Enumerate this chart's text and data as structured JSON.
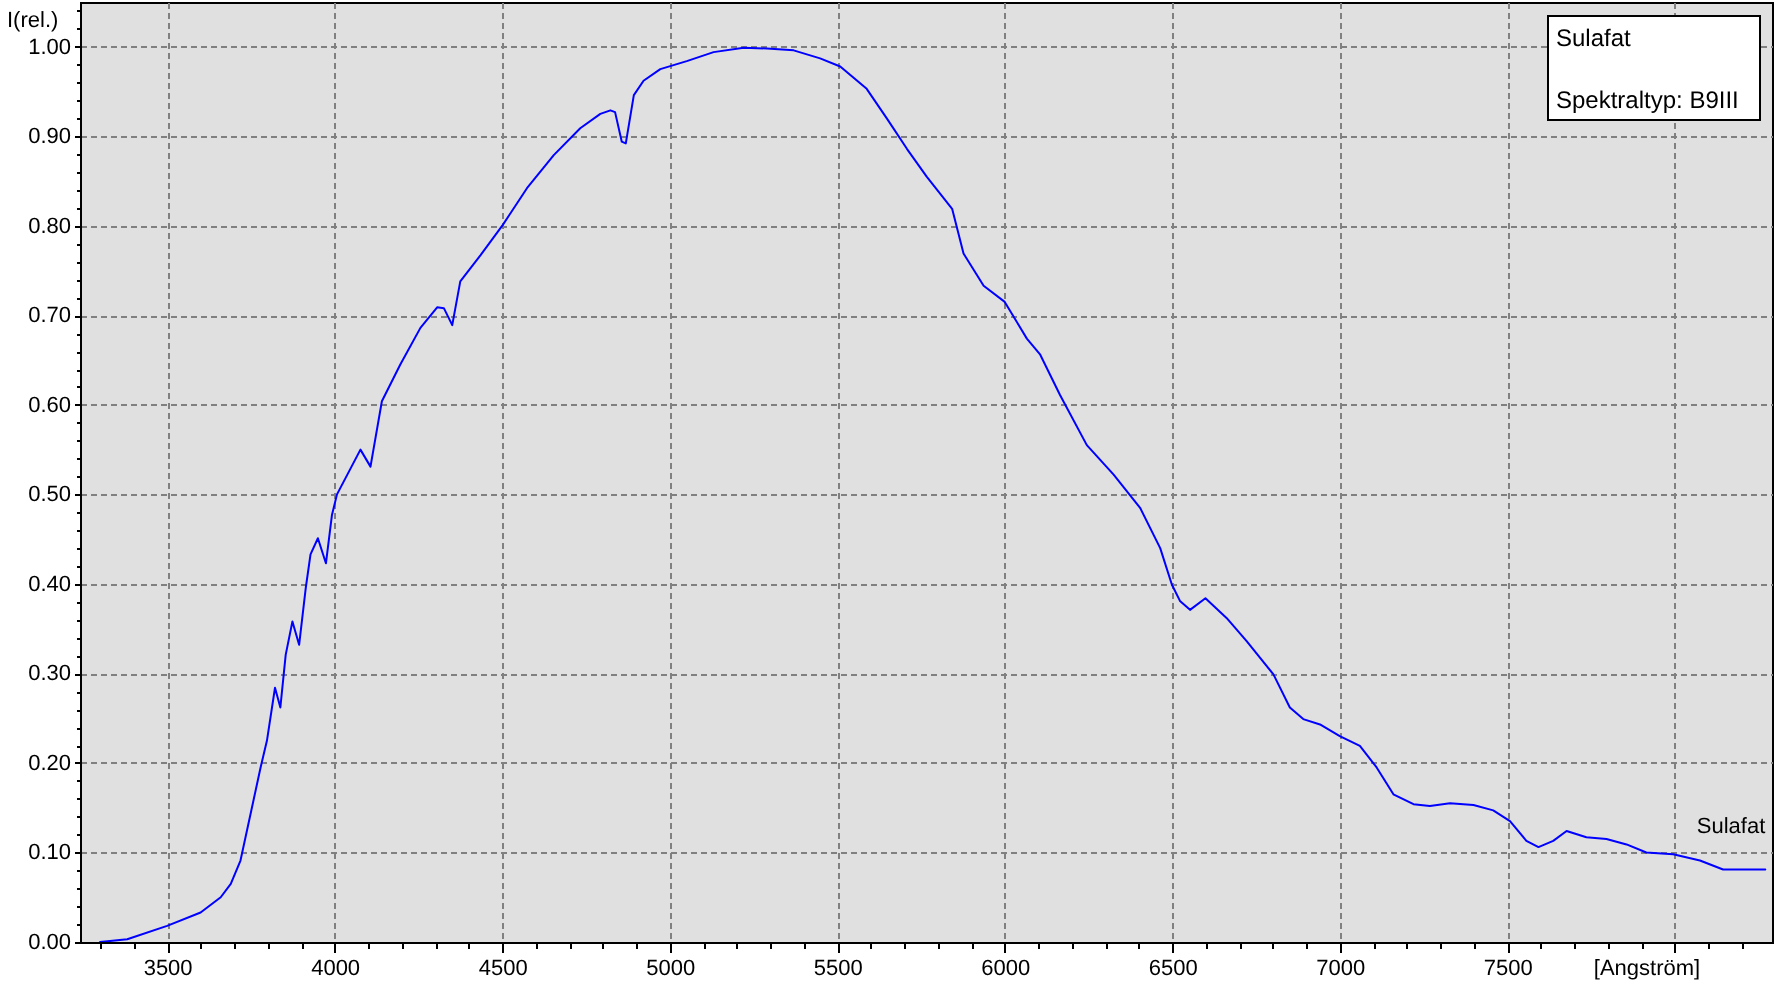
{
  "chart_data": {
    "type": "line",
    "title": "Sulafat",
    "subtitle": "Spektraltyp: B9III",
    "xlabel": "[Angström]",
    "ylabel": "I(rel.)",
    "x": [
      3300,
      3381,
      3500,
      3600,
      3660,
      3690,
      3719,
      3749,
      3779,
      3798,
      3822,
      3838,
      3854,
      3874,
      3894,
      3914,
      3928,
      3950,
      3974,
      3992,
      4007,
      4077,
      4107,
      4141,
      4196,
      4256,
      4306,
      4326,
      4351,
      4375,
      4435,
      4502,
      4574,
      4654,
      4733,
      4793,
      4823,
      4837,
      4857,
      4869,
      4893,
      4922,
      4972,
      5051,
      5131,
      5221,
      5290,
      5370,
      5449,
      5509,
      5588,
      5648,
      5708,
      5767,
      5843,
      5877,
      5937,
      6000,
      6066,
      6106,
      6165,
      6245,
      6325,
      6404,
      6464,
      6499,
      6523,
      6553,
      6599,
      6662,
      6722,
      6802,
      6851,
      6891,
      6941,
      7000,
      7060,
      7110,
      7160,
      7220,
      7269,
      7329,
      7399,
      7458,
      7508,
      7557,
      7593,
      7637,
      7677,
      7736,
      7796,
      7856,
      7915,
      7995,
      8075,
      8144,
      8270
    ],
    "series": [
      {
        "name": "Sulafat",
        "color": "#0000ff",
        "values": [
          0.0,
          0.003,
          0.018,
          0.033,
          0.05,
          0.065,
          0.091,
          0.143,
          0.195,
          0.225,
          0.284,
          0.262,
          0.321,
          0.358,
          0.332,
          0.396,
          0.433,
          0.451,
          0.423,
          0.477,
          0.5,
          0.55,
          0.531,
          0.604,
          0.645,
          0.686,
          0.709,
          0.708,
          0.689,
          0.738,
          0.767,
          0.801,
          0.842,
          0.879,
          0.909,
          0.925,
          0.929,
          0.927,
          0.894,
          0.892,
          0.946,
          0.962,
          0.975,
          0.984,
          0.994,
          0.999,
          0.998,
          0.996,
          0.987,
          0.978,
          0.953,
          0.92,
          0.886,
          0.855,
          0.819,
          0.769,
          0.733,
          0.715,
          0.674,
          0.656,
          0.611,
          0.555,
          0.522,
          0.485,
          0.44,
          0.399,
          0.381,
          0.371,
          0.384,
          0.362,
          0.336,
          0.299,
          0.262,
          0.249,
          0.243,
          0.23,
          0.219,
          0.195,
          0.165,
          0.154,
          0.152,
          0.155,
          0.153,
          0.147,
          0.135,
          0.113,
          0.106,
          0.113,
          0.124,
          0.117,
          0.115,
          0.109,
          0.1,
          0.098,
          0.091,
          0.081,
          0.081
        ]
      }
    ],
    "xlim": [
      3240,
      8290
    ],
    "ylim": [
      0,
      1.05
    ],
    "xticks": [
      {
        "value": 3300,
        "label": null
      },
      {
        "value": 3400,
        "label": null
      },
      3500,
      {
        "value": 3600,
        "label": null
      },
      {
        "value": 3700,
        "label": null
      },
      {
        "value": 3800,
        "label": null
      },
      {
        "value": 3900,
        "label": null
      },
      4000,
      {
        "value": 4100,
        "label": null
      },
      {
        "value": 4200,
        "label": null
      },
      {
        "value": 4300,
        "label": null
      },
      {
        "value": 4400,
        "label": null
      },
      4500,
      {
        "value": 4600,
        "label": null
      },
      {
        "value": 4700,
        "label": null
      },
      {
        "value": 4800,
        "label": null
      },
      {
        "value": 4900,
        "label": null
      },
      5000,
      {
        "value": 5100,
        "label": null
      },
      {
        "value": 5200,
        "label": null
      },
      {
        "value": 5300,
        "label": null
      },
      {
        "value": 5400,
        "label": null
      },
      5500,
      {
        "value": 5600,
        "label": null
      },
      {
        "value": 5700,
        "label": null
      },
      {
        "value": 5800,
        "label": null
      },
      {
        "value": 5900,
        "label": null
      },
      6000,
      {
        "value": 6100,
        "label": null
      },
      {
        "value": 6200,
        "label": null
      },
      {
        "value": 6300,
        "label": null
      },
      {
        "value": 6400,
        "label": null
      },
      6500,
      {
        "value": 6600,
        "label": null
      },
      {
        "value": 6700,
        "label": null
      },
      {
        "value": 6800,
        "label": null
      },
      {
        "value": 6900,
        "label": null
      },
      7000,
      {
        "value": 7100,
        "label": null
      },
      {
        "value": 7200,
        "label": null
      },
      {
        "value": 7300,
        "label": null
      },
      {
        "value": 7400,
        "label": null
      },
      7500,
      {
        "value": 7600,
        "label": null
      },
      {
        "value": 7700,
        "label": null
      },
      {
        "value": 7800,
        "label": null
      },
      {
        "value": 7900,
        "label": null
      },
      {
        "value": 8000,
        "label": null
      },
      {
        "value": 8100,
        "label": null
      },
      {
        "value": 8200,
        "label": null
      }
    ],
    "yticks": [
      {
        "value": 0,
        "label": "0.00"
      },
      {
        "value": 0.02,
        "label": null
      },
      {
        "value": 0.04,
        "label": null
      },
      {
        "value": 0.06,
        "label": null
      },
      {
        "value": 0.08,
        "label": null
      },
      {
        "value": 0.1,
        "label": "0.10"
      },
      {
        "value": 0.12,
        "label": null
      },
      {
        "value": 0.14,
        "label": null
      },
      {
        "value": 0.16,
        "label": null
      },
      {
        "value": 0.18,
        "label": null
      },
      {
        "value": 0.2,
        "label": "0.20"
      },
      {
        "value": 0.22,
        "label": null
      },
      {
        "value": 0.24,
        "label": null
      },
      {
        "value": 0.26,
        "label": null
      },
      {
        "value": 0.28,
        "label": null
      },
      {
        "value": 0.3,
        "label": "0.30"
      },
      {
        "value": 0.32,
        "label": null
      },
      {
        "value": 0.34,
        "label": null
      },
      {
        "value": 0.36,
        "label": null
      },
      {
        "value": 0.38,
        "label": null
      },
      {
        "value": 0.4,
        "label": "0.40"
      },
      {
        "value": 0.42,
        "label": null
      },
      {
        "value": 0.44,
        "label": null
      },
      {
        "value": 0.46,
        "label": null
      },
      {
        "value": 0.48,
        "label": null
      },
      {
        "value": 0.5,
        "label": "0.50"
      },
      {
        "value": 0.52,
        "label": null
      },
      {
        "value": 0.54,
        "label": null
      },
      {
        "value": 0.56,
        "label": null
      },
      {
        "value": 0.58,
        "label": null
      },
      {
        "value": 0.6,
        "label": "0.60"
      },
      {
        "value": 0.62,
        "label": null
      },
      {
        "value": 0.64,
        "label": null
      },
      {
        "value": 0.66,
        "label": null
      },
      {
        "value": 0.68,
        "label": null
      },
      {
        "value": 0.7,
        "label": "0.70"
      },
      {
        "value": 0.72,
        "label": null
      },
      {
        "value": 0.74,
        "label": null
      },
      {
        "value": 0.76,
        "label": null
      },
      {
        "value": 0.78,
        "label": null
      },
      {
        "value": 0.8,
        "label": "0.80"
      },
      {
        "value": 0.82,
        "label": null
      },
      {
        "value": 0.84,
        "label": null
      },
      {
        "value": 0.86,
        "label": null
      },
      {
        "value": 0.88,
        "label": null
      },
      {
        "value": 0.9,
        "label": "0.90"
      },
      {
        "value": 0.92,
        "label": null
      },
      {
        "value": 0.94,
        "label": null
      },
      {
        "value": 0.96,
        "label": null
      },
      {
        "value": 0.98,
        "label": null
      },
      {
        "value": 1.0,
        "label": "1.00"
      },
      {
        "value": 1.02,
        "label": null
      },
      {
        "value": 1.04,
        "label": null
      }
    ],
    "grid": true
  }
}
